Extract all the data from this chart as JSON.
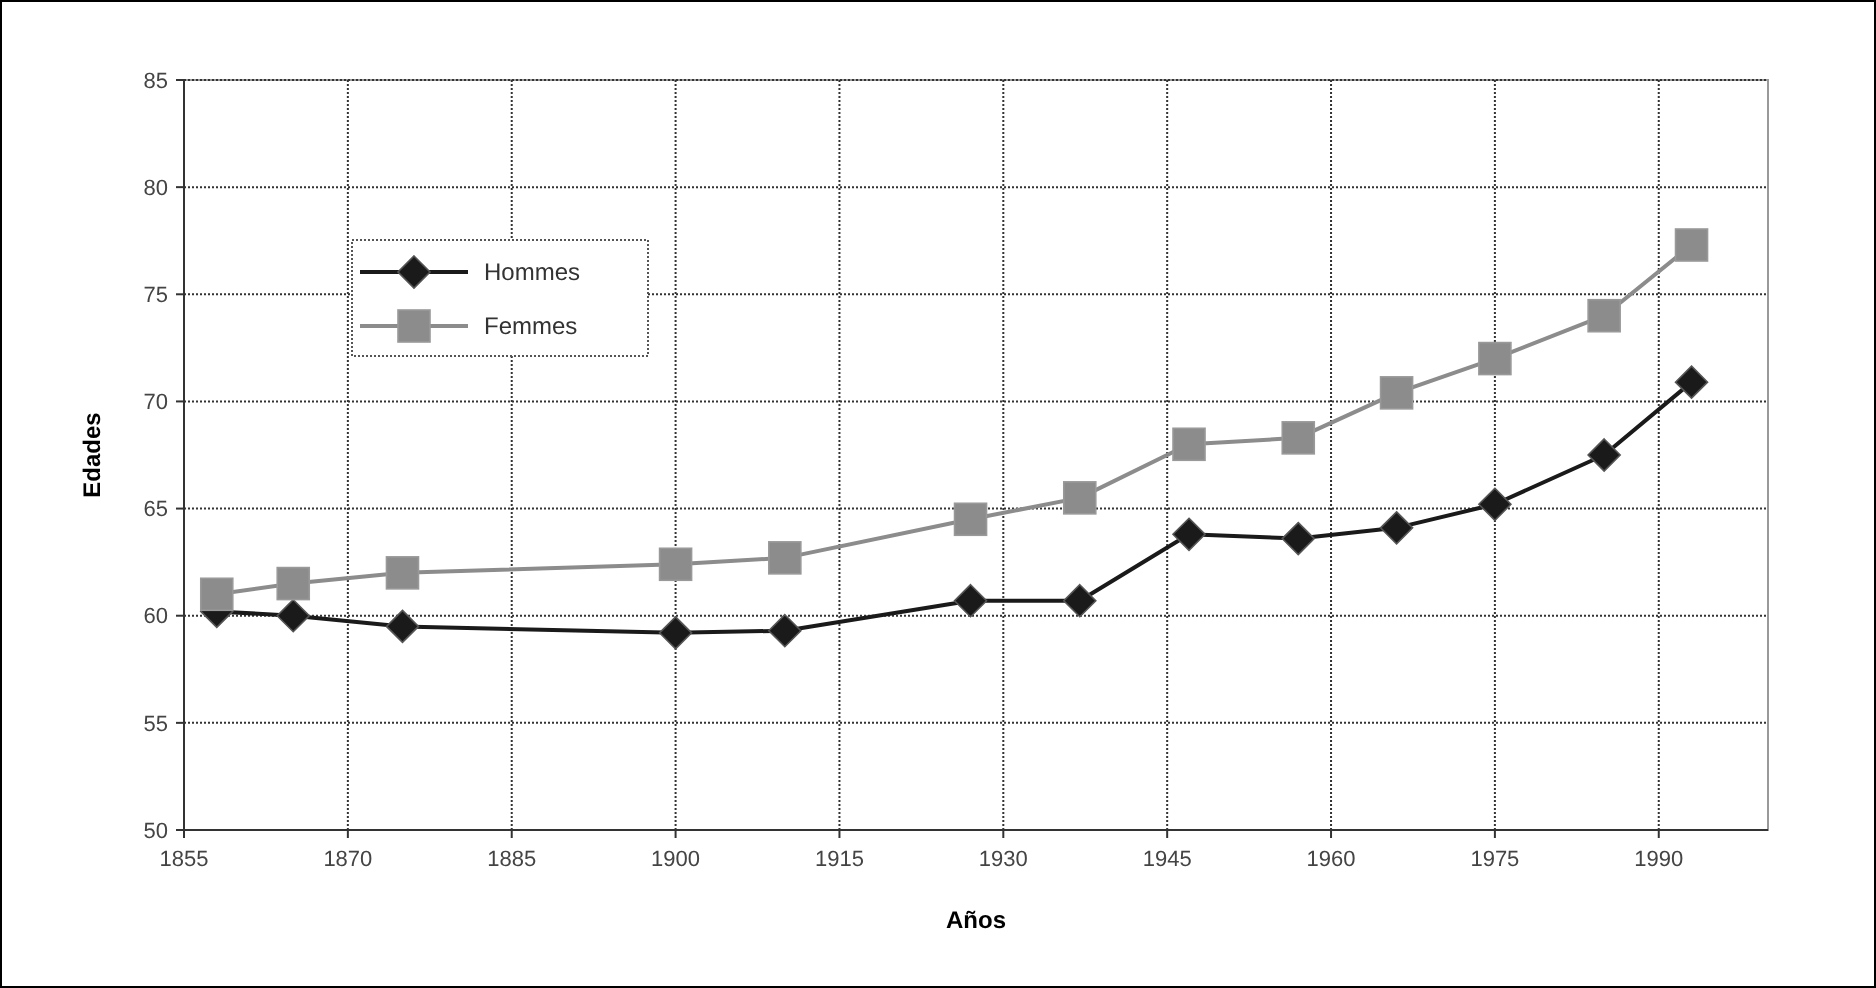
{
  "chart_data": {
    "type": "line",
    "xlabel": "Años",
    "ylabel": "Edades",
    "x": [
      1858,
      1865,
      1875,
      1900,
      1910,
      1927,
      1937,
      1947,
      1957,
      1966,
      1975,
      1985,
      1993
    ],
    "series": [
      {
        "name": "Hommes",
        "color": "#1a1a1a",
        "marker": "diamond",
        "values": [
          60.2,
          60.0,
          59.5,
          59.2,
          59.3,
          60.7,
          60.7,
          63.8,
          63.6,
          64.1,
          65.2,
          67.5,
          70.9
        ]
      },
      {
        "name": "Femmes",
        "color": "#8c8c8c",
        "marker": "square",
        "values": [
          61.0,
          61.5,
          62.0,
          62.4,
          62.7,
          64.5,
          65.5,
          68.0,
          68.3,
          70.4,
          72.0,
          74.0,
          77.3
        ]
      }
    ],
    "xlim": [
      1855,
      2000
    ],
    "xticks": [
      1855,
      1870,
      1885,
      1900,
      1915,
      1930,
      1945,
      1960,
      1975,
      1990
    ],
    "ylim": [
      50,
      85
    ],
    "yticks": [
      50,
      55,
      60,
      65,
      70,
      75,
      80,
      85
    ],
    "grid": true,
    "legend": "top left"
  }
}
